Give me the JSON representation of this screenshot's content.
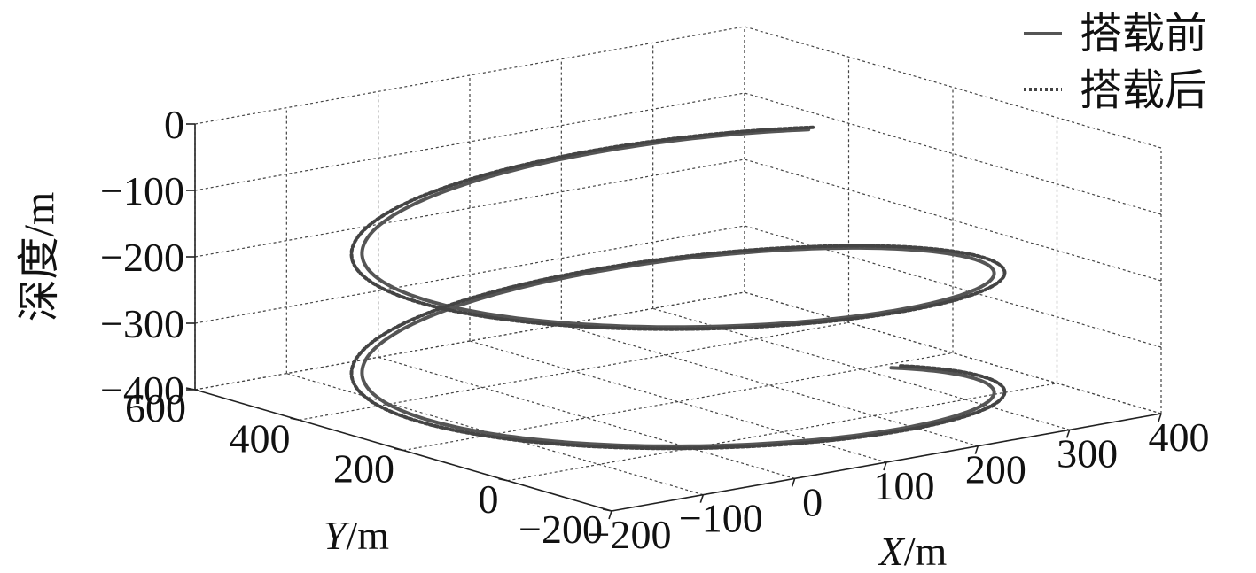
{
  "chart_data": {
    "type": "line3d",
    "title": "",
    "xlabel": "X/m",
    "ylabel": "Y/m",
    "zlabel": "深度/m",
    "xlim": [
      -200,
      400
    ],
    "ylim": [
      -200,
      600
    ],
    "zlim": [
      -400,
      0
    ],
    "x_ticks": [
      "−200",
      "−100",
      "0",
      "100",
      "200",
      "300",
      "400"
    ],
    "y_ticks": [
      "−200",
      "0",
      "200",
      "400",
      "600"
    ],
    "z_ticks": [
      "0",
      "−100",
      "−200",
      "−300",
      "−400"
    ],
    "grid": true,
    "legend_position": "top-right",
    "series": [
      {
        "name": "搭载前",
        "style": "solid",
        "color": "#555555",
        "turns": [
          0.1,
          2.05
        ],
        "center": [
          100,
          200
        ],
        "radius": 300,
        "z_range": [
          -90,
          -440
        ]
      },
      {
        "name": "搭载后",
        "style": "dotted",
        "color": "#444444",
        "turns": [
          0.1,
          2.05
        ],
        "center": [
          100,
          200
        ],
        "radius": 310,
        "z_range": [
          -90,
          -440
        ]
      }
    ]
  }
}
